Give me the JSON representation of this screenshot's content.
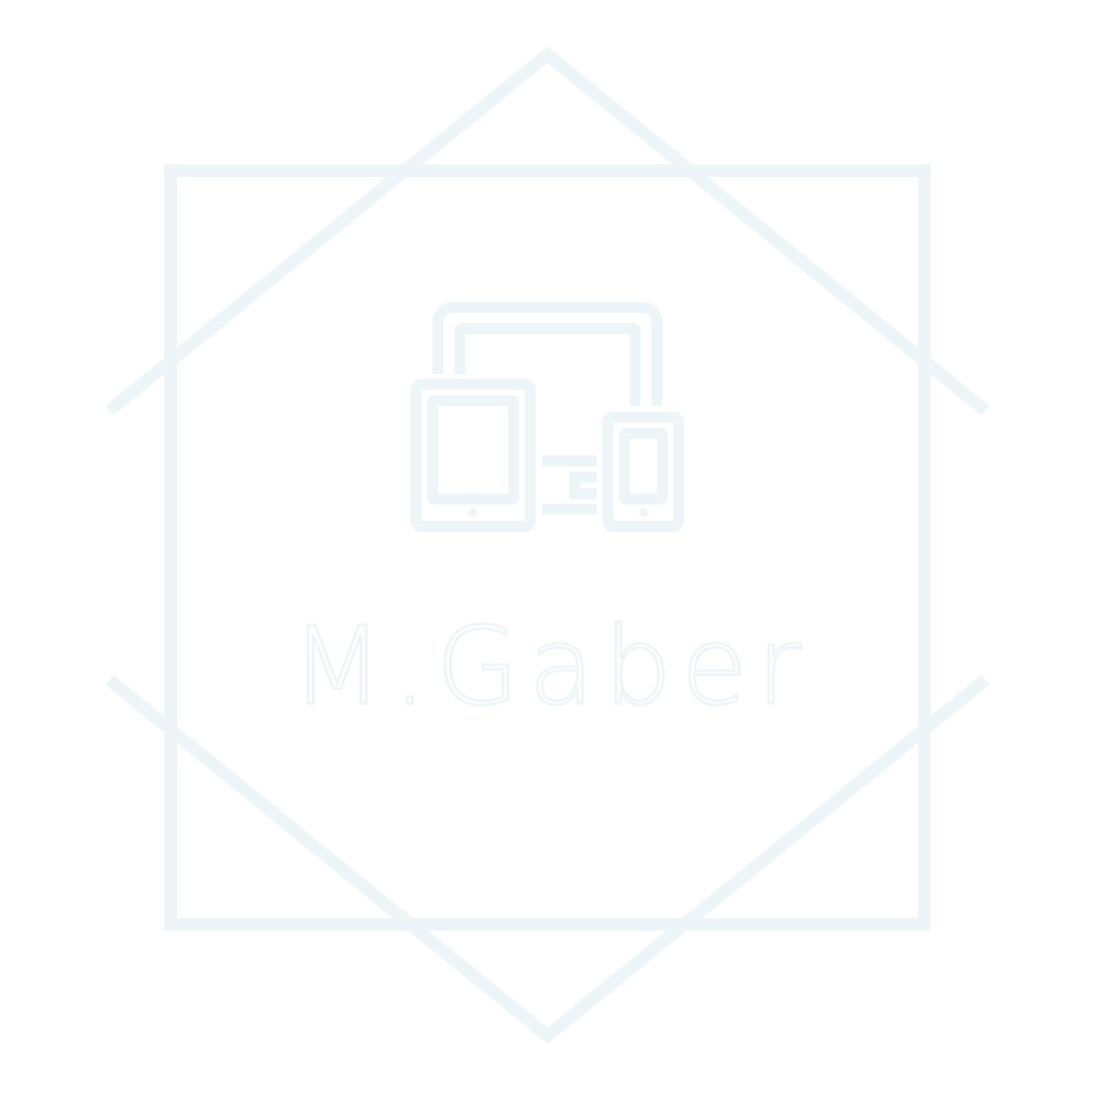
{
  "logo": {
    "wordmark": "M.Gaber",
    "stroke_color": "#eef5f8",
    "fill_color": "#eef5f8",
    "icon": "responsive-devices-icon",
    "frame": "square-with-crossed-chevrons"
  }
}
